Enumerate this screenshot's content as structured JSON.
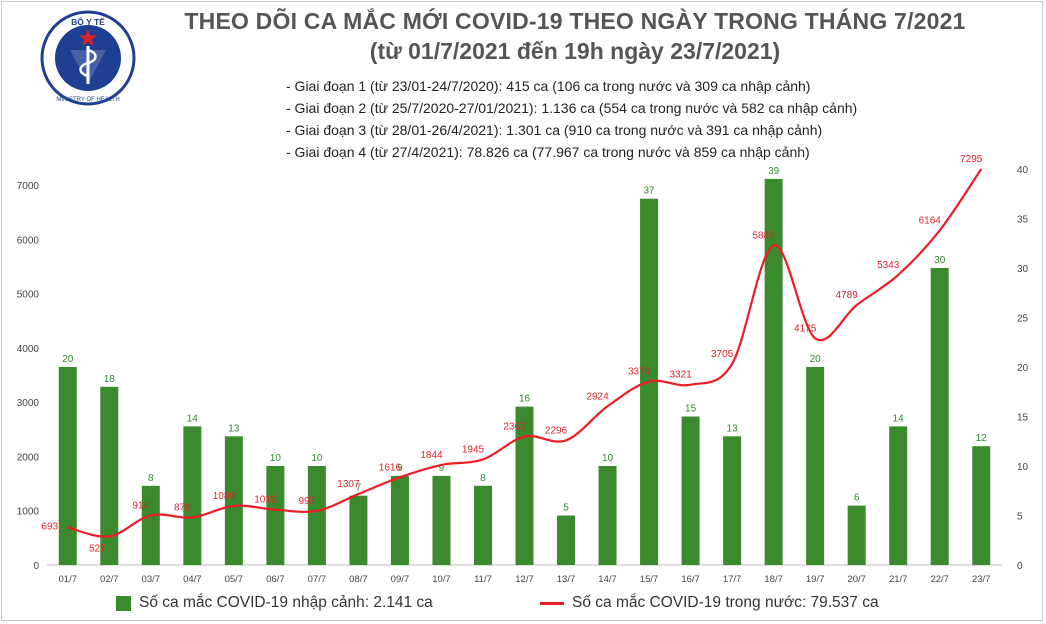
{
  "header": {
    "title_line1": "THEO DÕI CA MẮC MỚI COVID-19 THEO NGÀY TRONG THÁNG 7/2021",
    "title_line2": "(từ 01/7/2021 đến 19h ngày 23/7/2021)"
  },
  "logo": {
    "top_text": "BỘ Y TẾ",
    "bottom_text": "MINISTRY OF HEALTH"
  },
  "notes": [
    "- Giai đoạn 1 (từ 23/01-24/7/2020): 415 ca (106 ca trong nước và 309 ca nhập cảnh)",
    "- Giai đoạn 2 (từ 25/7/2020-27/01/2021): 1.136 ca (554 ca trong nước và 582 ca nhập cảnh)",
    "- Giai đoạn 3 (từ 28/01-26/4/2021): 1.301 ca (910 ca trong nước và 391 ca nhập cảnh)",
    "- Giai đoạn 4 (từ 27/4/2021): 78.826 ca (77.967 ca trong nước và 859 ca nhập cảnh)"
  ],
  "legend": {
    "bar_label": "Số ca mắc COVID-19 nhập cảnh: 2.141 ca",
    "line_label": "Số ca mắc COVID-19 trong nước: 79.537 ca"
  },
  "colors": {
    "bar": "#3b8a2e",
    "bar_label": "#2e8a2e",
    "line": "#ee1c25",
    "line_label": "#e0242a",
    "axis_text": "#444444",
    "title": "#555555",
    "logo_blue": "#1f3f93",
    "logo_red": "#d7262b"
  },
  "chart_data": {
    "type": "bar",
    "categories": [
      "01/7",
      "02/7",
      "03/7",
      "04/7",
      "05/7",
      "06/7",
      "07/7",
      "08/7",
      "09/7",
      "10/7",
      "11/7",
      "12/7",
      "13/7",
      "14/7",
      "15/7",
      "16/7",
      "17/7",
      "18/7",
      "19/7",
      "20/7",
      "21/7",
      "22/7",
      "23/7"
    ],
    "series": [
      {
        "name": "Số ca mắc COVID-19 nhập cảnh: 2.141 ca",
        "type": "bar",
        "axis": "right",
        "values": [
          20,
          18,
          8,
          14,
          13,
          10,
          10,
          7,
          9,
          9,
          8,
          16,
          5,
          10,
          37,
          15,
          13,
          39,
          20,
          6,
          14,
          30,
          12
        ]
      },
      {
        "name": "Số ca mắc COVID-19 trong nước: 79.537 ca",
        "type": "line",
        "axis": "left",
        "values": [
          693,
          527,
          914,
          876,
          1089,
          1019,
          997,
          1307,
          1616,
          1844,
          1945,
          2367,
          2296,
          2924,
          3379,
          3321,
          3705,
          5887,
          4175,
          4789,
          5343,
          6164,
          7295
        ]
      }
    ],
    "ylim_left": [
      0,
      7000
    ],
    "yticks_left": [
      0,
      1000,
      2000,
      3000,
      4000,
      5000,
      6000,
      7000
    ],
    "ylim_right": [
      0,
      40
    ],
    "yticks_right": [
      0,
      5,
      10,
      15,
      20,
      25,
      30,
      35,
      40
    ],
    "grid": false,
    "legend_position": "bottom"
  }
}
